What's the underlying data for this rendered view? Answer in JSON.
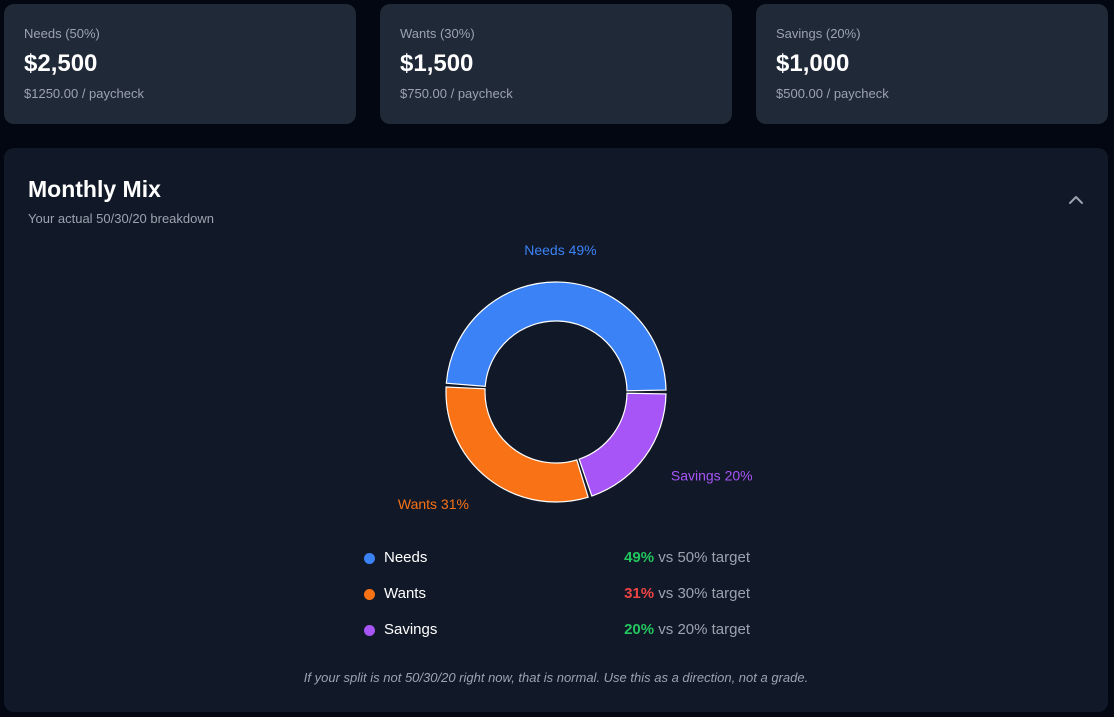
{
  "cards": [
    {
      "label": "Needs (50%)",
      "amount": "$2,500",
      "sub": "$1250.00 / paycheck"
    },
    {
      "label": "Wants (30%)",
      "amount": "$1,500",
      "sub": "$750.00 / paycheck"
    },
    {
      "label": "Savings (20%)",
      "amount": "$1,000",
      "sub": "$500.00 / paycheck"
    }
  ],
  "panel": {
    "title": "Monthly Mix",
    "subtitle": "Your actual 50/30/20 breakdown",
    "collapse_icon": "chevron-up-icon"
  },
  "chart_data": {
    "type": "pie",
    "donut": true,
    "categories": [
      "Needs",
      "Wants",
      "Savings"
    ],
    "values": [
      49,
      31,
      20
    ],
    "unit": "%",
    "colors": [
      "#3b82f6",
      "#f97316",
      "#a855f7"
    ],
    "slice_labels": [
      "Needs 49%",
      "Wants 31%",
      "Savings 20%"
    ],
    "title": "",
    "legend": "none"
  },
  "legend": [
    {
      "name": "Needs",
      "color": "#3b82f6",
      "pct": "49%",
      "pct_color": "#22c55e",
      "target": "vs 50% target"
    },
    {
      "name": "Wants",
      "color": "#f97316",
      "pct": "31%",
      "pct_color": "#ef4444",
      "target": "vs 30% target"
    },
    {
      "name": "Savings",
      "color": "#a855f7",
      "pct": "20%",
      "pct_color": "#22c55e",
      "target": "vs 20% target"
    }
  ],
  "footnote": "If your split is not 50/30/20 right now, that is normal. Use this as a direction, not a grade."
}
